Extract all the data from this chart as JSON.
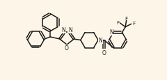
{
  "bg_color": "#fdf6e8",
  "line_color": "#1a1a1a",
  "figure_width": 2.4,
  "figure_height": 1.16,
  "dpi": 100,
  "xlim": [
    0,
    12.0
  ],
  "ylim": [
    0,
    5.8
  ]
}
